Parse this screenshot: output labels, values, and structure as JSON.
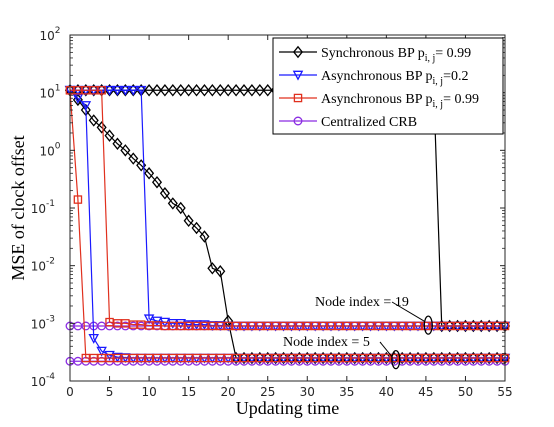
{
  "chart_data": {
    "type": "line",
    "xlabel": "Updating time",
    "ylabel": "MSE of clock offset",
    "xlim": [
      0,
      55
    ],
    "ylim_log10": [
      -4,
      2
    ],
    "y_scale": "log",
    "x_ticks": [
      "0",
      "5",
      "10",
      "15",
      "20",
      "25",
      "30",
      "35",
      "40",
      "45",
      "50",
      "55"
    ],
    "y_ticks": [
      {
        "base": "10",
        "exp": "2"
      },
      {
        "base": "10",
        "exp": "1"
      },
      {
        "base": "10",
        "exp": "0"
      },
      {
        "base": "10",
        "exp": "-1"
      },
      {
        "base": "10",
        "exp": "-2"
      },
      {
        "base": "10",
        "exp": "-3"
      },
      {
        "base": "10",
        "exp": "-4"
      }
    ],
    "grid": false,
    "legend_position": "top-right",
    "legend": [
      {
        "pre": "Synchronous BP p",
        "sub": "i, j",
        "post": "= 0.99"
      },
      {
        "pre": "Asynchronous BP p",
        "sub": "i, j",
        "post": "=0.2"
      },
      {
        "pre": "Asynchronous BP p",
        "sub": "i, j",
        "post": "= 0.99"
      },
      {
        "pre": "Centralized CRB",
        "sub": "",
        "post": ""
      }
    ],
    "annotations": [
      "Node index = 19",
      "Node index = 5"
    ],
    "series": [
      {
        "color": "#000000",
        "marker": "diamond",
        "x": [
          0,
          1,
          2,
          3,
          4,
          5,
          6,
          7,
          8,
          9,
          10,
          11,
          12,
          13,
          14,
          15,
          16,
          17,
          18,
          19,
          20,
          21,
          22,
          23,
          24,
          25,
          26,
          27,
          28,
          29,
          30,
          31,
          32,
          33,
          34,
          35,
          36,
          37,
          38,
          39,
          40,
          41,
          42,
          43,
          44,
          45,
          46,
          47,
          48,
          49,
          50,
          51,
          52,
          53,
          54,
          55
        ],
        "y": [
          11,
          7.5,
          5,
          3.3,
          2.5,
          1.8,
          1.3,
          1.0,
          0.72,
          0.55,
          0.4,
          0.28,
          0.18,
          0.12,
          0.1,
          0.06,
          0.045,
          0.032,
          0.009,
          0.008,
          0.0011,
          0.00025,
          0.00025,
          0.00025,
          0.00025,
          0.00025,
          0.00025,
          0.00025,
          0.00025,
          0.00025,
          0.00025,
          0.00025,
          0.00025,
          0.00025,
          0.00025,
          0.00025,
          0.00025,
          0.00025,
          0.00025,
          0.00025,
          0.00025,
          0.00025,
          0.00025,
          0.00025,
          0.00025,
          0.00025,
          0.00025,
          0.00025,
          0.00025,
          0.00025,
          0.00025,
          0.00025,
          0.00025,
          0.00025,
          0.00025,
          0.00025
        ]
      },
      {
        "color": "#000000",
        "marker": "diamond",
        "x": [
          0,
          1,
          2,
          3,
          4,
          5,
          6,
          7,
          8,
          9,
          10,
          11,
          12,
          13,
          14,
          15,
          16,
          17,
          18,
          19,
          20,
          21,
          22,
          23,
          24,
          25,
          26,
          27,
          28,
          29,
          30,
          31,
          32,
          33,
          34,
          35,
          36,
          37,
          38,
          39,
          40,
          41,
          42,
          43,
          44,
          45,
          46,
          47,
          48,
          49,
          50,
          51,
          52,
          53,
          54,
          55
        ],
        "y": [
          11,
          11,
          11,
          11,
          11,
          11,
          11,
          11,
          11,
          11,
          11,
          11,
          11,
          11,
          11,
          11,
          11,
          11,
          11,
          11,
          11,
          11,
          11,
          11,
          11,
          11,
          11,
          11,
          11,
          11,
          11,
          11,
          11,
          11,
          11,
          11,
          11,
          11,
          11,
          11,
          11,
          11,
          11,
          11,
          11,
          11,
          11,
          0.0009,
          0.0009,
          0.0009,
          0.0009,
          0.0009,
          0.0009,
          0.0009,
          0.0009,
          0.0009
        ]
      },
      {
        "color": "#1a1aff",
        "marker": "triangle-down",
        "x": [
          0,
          1,
          2,
          3,
          4,
          5,
          6,
          7,
          8,
          9,
          10,
          11,
          12,
          13,
          14,
          15,
          16,
          17,
          18,
          19,
          20,
          21,
          22,
          23,
          24,
          25,
          26,
          27,
          28,
          29,
          30,
          31,
          32,
          33,
          34,
          35,
          36,
          37,
          38,
          39,
          40,
          41,
          42,
          43,
          44,
          45,
          46,
          47,
          48,
          49,
          50,
          51,
          52,
          53,
          54,
          55
        ],
        "y": [
          11,
          8,
          6,
          0.00055,
          0.00033,
          0.00028,
          0.00026,
          0.000255,
          0.00025,
          0.00025,
          0.00025,
          0.00025,
          0.00025,
          0.00025,
          0.00025,
          0.00025,
          0.00025,
          0.00025,
          0.00025,
          0.00025,
          0.00025,
          0.00025,
          0.00025,
          0.00025,
          0.00025,
          0.00025,
          0.00025,
          0.00025,
          0.00025,
          0.00025,
          0.00025,
          0.00025,
          0.00025,
          0.00025,
          0.00025,
          0.00025,
          0.00025,
          0.00025,
          0.00025,
          0.00025,
          0.00025,
          0.00025,
          0.00025,
          0.00025,
          0.00025,
          0.00025,
          0.00025,
          0.00025,
          0.00025,
          0.00025,
          0.00025,
          0.00025,
          0.00025,
          0.00025,
          0.00025,
          0.00025
        ]
      },
      {
        "color": "#1a1aff",
        "marker": "triangle-down",
        "x": [
          0,
          1,
          2,
          3,
          4,
          5,
          6,
          7,
          8,
          9,
          10,
          11,
          12,
          13,
          14,
          15,
          16,
          17,
          18,
          19,
          20,
          21,
          22,
          23,
          24,
          25,
          26,
          27,
          28,
          29,
          30,
          31,
          32,
          33,
          34,
          35,
          36,
          37,
          38,
          39,
          40,
          41,
          42,
          43,
          44,
          45,
          46,
          47,
          48,
          49,
          50,
          51,
          52,
          53,
          54,
          55
        ],
        "y": [
          11,
          11,
          11,
          11,
          11,
          11,
          11,
          11,
          11,
          11,
          0.0012,
          0.0011,
          0.00105,
          0.001,
          0.001,
          0.00095,
          0.00095,
          0.00095,
          0.00092,
          0.00092,
          0.0009,
          0.0009,
          0.0009,
          0.0009,
          0.0009,
          0.0009,
          0.0009,
          0.0009,
          0.0009,
          0.0009,
          0.0009,
          0.0009,
          0.0009,
          0.0009,
          0.0009,
          0.0009,
          0.0009,
          0.0009,
          0.0009,
          0.0009,
          0.0009,
          0.0009,
          0.0009,
          0.0009,
          0.0009,
          0.0009,
          0.0009,
          0.0009,
          0.0009,
          0.0009,
          0.0009,
          0.0009,
          0.0009,
          0.0009,
          0.0009,
          0.0009
        ]
      },
      {
        "color": "#e0301e",
        "marker": "square",
        "x": [
          0,
          1,
          2,
          3,
          4,
          5,
          6,
          7,
          8,
          9,
          10,
          11,
          12,
          13,
          14,
          15,
          16,
          17,
          18,
          19,
          20,
          21,
          22,
          23,
          24,
          25,
          26,
          27,
          28,
          29,
          30,
          31,
          32,
          33,
          34,
          35,
          36,
          37,
          38,
          39,
          40,
          41,
          42,
          43,
          44,
          45,
          46,
          47,
          48,
          49,
          50,
          51,
          52,
          53,
          54,
          55
        ],
        "y": [
          11,
          0.14,
          0.00025,
          0.00025,
          0.00025,
          0.00025,
          0.00025,
          0.00025,
          0.00025,
          0.00025,
          0.00025,
          0.00025,
          0.00025,
          0.00025,
          0.00025,
          0.00025,
          0.00025,
          0.00025,
          0.00025,
          0.00025,
          0.00025,
          0.00025,
          0.00025,
          0.00025,
          0.00025,
          0.00025,
          0.00025,
          0.00025,
          0.00025,
          0.00025,
          0.00025,
          0.00025,
          0.00025,
          0.00025,
          0.00025,
          0.00025,
          0.00025,
          0.00025,
          0.00025,
          0.00025,
          0.00025,
          0.00025,
          0.00025,
          0.00025,
          0.00025,
          0.00025,
          0.00025,
          0.00025,
          0.00025,
          0.00025,
          0.00025,
          0.00025,
          0.00025,
          0.00025,
          0.00025,
          0.00025
        ]
      },
      {
        "color": "#e0301e",
        "marker": "square",
        "x": [
          0,
          1,
          2,
          3,
          4,
          5,
          6,
          7,
          8,
          9,
          10,
          11,
          12,
          13,
          14,
          15,
          16,
          17,
          18,
          19,
          20,
          21,
          22,
          23,
          24,
          25,
          26,
          27,
          28,
          29,
          30,
          31,
          32,
          33,
          34,
          35,
          36,
          37,
          38,
          39,
          40,
          41,
          42,
          43,
          44,
          45,
          46,
          47,
          48,
          49,
          50,
          51,
          52,
          53,
          54,
          55
        ],
        "y": [
          11,
          11,
          11,
          11,
          11,
          0.00105,
          0.001,
          0.001,
          0.00095,
          0.00095,
          0.00092,
          0.00092,
          0.0009,
          0.0009,
          0.0009,
          0.0009,
          0.0009,
          0.0009,
          0.0009,
          0.0009,
          0.0009,
          0.0009,
          0.0009,
          0.0009,
          0.0009,
          0.0009,
          0.0009,
          0.0009,
          0.0009,
          0.0009,
          0.0009,
          0.0009,
          0.0009,
          0.0009,
          0.0009,
          0.0009,
          0.0009,
          0.0009,
          0.0009,
          0.0009,
          0.0009,
          0.0009,
          0.0009,
          0.0009,
          0.0009,
          0.0009,
          0.0009,
          0.0009,
          0.0009,
          0.0009,
          0.0009,
          0.0009,
          0.0009,
          0.0009,
          0.0009,
          0.0009
        ]
      },
      {
        "color": "#8a2be2",
        "marker": "circle",
        "x": [
          0,
          1,
          2,
          3,
          4,
          5,
          6,
          7,
          8,
          9,
          10,
          11,
          12,
          13,
          14,
          15,
          16,
          17,
          18,
          19,
          20,
          21,
          22,
          23,
          24,
          25,
          26,
          27,
          28,
          29,
          30,
          31,
          32,
          33,
          34,
          35,
          36,
          37,
          38,
          39,
          40,
          41,
          42,
          43,
          44,
          45,
          46,
          47,
          48,
          49,
          50,
          51,
          52,
          53,
          54,
          55
        ],
        "y": [
          0.0009,
          0.0009,
          0.0009,
          0.0009,
          0.0009,
          0.0009,
          0.0009,
          0.0009,
          0.0009,
          0.0009,
          0.0009,
          0.0009,
          0.0009,
          0.0009,
          0.0009,
          0.0009,
          0.0009,
          0.0009,
          0.0009,
          0.0009,
          0.0009,
          0.0009,
          0.0009,
          0.0009,
          0.0009,
          0.0009,
          0.0009,
          0.0009,
          0.0009,
          0.0009,
          0.0009,
          0.0009,
          0.0009,
          0.0009,
          0.0009,
          0.0009,
          0.0009,
          0.0009,
          0.0009,
          0.0009,
          0.0009,
          0.0009,
          0.0009,
          0.0009,
          0.0009,
          0.0009,
          0.0009,
          0.0009,
          0.0009,
          0.0009,
          0.0009,
          0.0009,
          0.0009,
          0.0009,
          0.0009,
          0.0009
        ]
      },
      {
        "color": "#8a2be2",
        "marker": "circle",
        "x": [
          0,
          1,
          2,
          3,
          4,
          5,
          6,
          7,
          8,
          9,
          10,
          11,
          12,
          13,
          14,
          15,
          16,
          17,
          18,
          19,
          20,
          21,
          22,
          23,
          24,
          25,
          26,
          27,
          28,
          29,
          30,
          31,
          32,
          33,
          34,
          35,
          36,
          37,
          38,
          39,
          40,
          41,
          42,
          43,
          44,
          45,
          46,
          47,
          48,
          49,
          50,
          51,
          52,
          53,
          54,
          55
        ],
        "y": [
          0.00022,
          0.00022,
          0.00022,
          0.00022,
          0.00022,
          0.00022,
          0.00022,
          0.00022,
          0.00022,
          0.00022,
          0.00022,
          0.00022,
          0.00022,
          0.00022,
          0.00022,
          0.00022,
          0.00022,
          0.00022,
          0.00022,
          0.00022,
          0.00022,
          0.00022,
          0.00022,
          0.00022,
          0.00022,
          0.00022,
          0.00022,
          0.00022,
          0.00022,
          0.00022,
          0.00022,
          0.00022,
          0.00022,
          0.00022,
          0.00022,
          0.00022,
          0.00022,
          0.00022,
          0.00022,
          0.00022,
          0.00022,
          0.00022,
          0.00022,
          0.00022,
          0.00022,
          0.00022,
          0.00022,
          0.00022,
          0.00022,
          0.00022,
          0.00022,
          0.00022,
          0.00022,
          0.00022,
          0.00022,
          0.00022
        ]
      }
    ]
  }
}
